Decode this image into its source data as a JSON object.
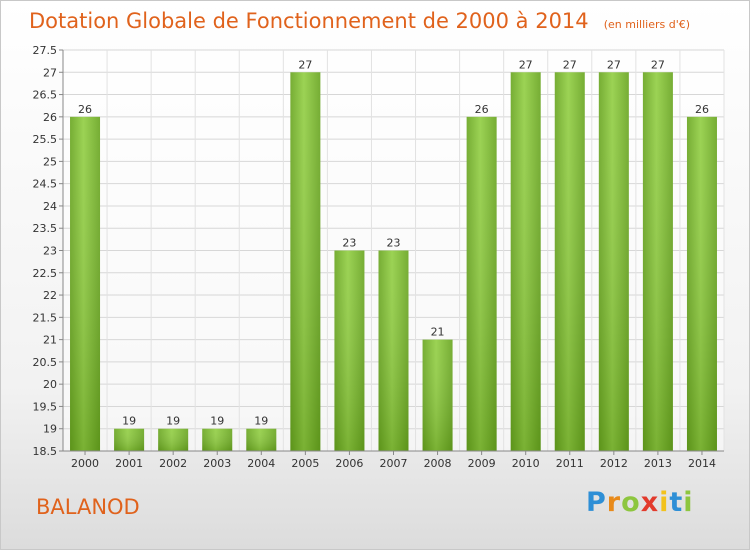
{
  "header": {
    "title": "Dotation Globale de Fonctionnement de 2000 à 2014",
    "subtitle": "(en milliers d'€)"
  },
  "footer": {
    "commune": "BALANOD",
    "logo": "Proxiti",
    "logo_colors": [
      "#2e8fd6",
      "#e88a1a",
      "#8dc63f",
      "#e23a2c",
      "#f2c21c",
      "#2e8fd6",
      "#8dc63f"
    ]
  },
  "chart_data": {
    "type": "bar",
    "categories": [
      "2000",
      "2001",
      "2002",
      "2003",
      "2004",
      "2005",
      "2006",
      "2007",
      "2008",
      "2009",
      "2010",
      "2011",
      "2012",
      "2013",
      "2014"
    ],
    "values": [
      26,
      19,
      19,
      19,
      19,
      27,
      23,
      23,
      21,
      26,
      27,
      27,
      27,
      27,
      26
    ],
    "value_labels": [
      "26",
      "19",
      "19",
      "19",
      "19",
      "27",
      "23",
      "23",
      "21",
      "26",
      "27",
      "27",
      "27",
      "27",
      "26"
    ],
    "ylim": [
      18.5,
      27.5
    ],
    "yticks": [
      18.5,
      19,
      19.5,
      20,
      20.5,
      21,
      21.5,
      22,
      22.5,
      23,
      23.5,
      24,
      24.5,
      25,
      25.5,
      26,
      26.5,
      27,
      27.5
    ],
    "ytick_labels": [
      "18.5",
      "19",
      "19.5",
      "20",
      "20.5",
      "21",
      "21.5",
      "22",
      "22.5",
      "23",
      "23.5",
      "24",
      "24.5",
      "25",
      "25.5",
      "26",
      "26.5",
      "27",
      "27.5"
    ],
    "bar_color": "#7cb82f",
    "grid": true,
    "legend": "none"
  }
}
